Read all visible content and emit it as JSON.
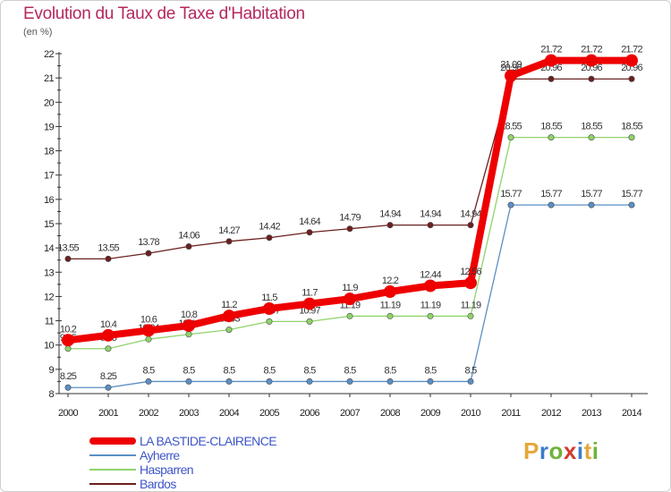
{
  "header": {
    "title": "Evolution du Taux de Taxe d'Habitation",
    "unit": "(en %)"
  },
  "logo": {
    "text": "Proxiti"
  },
  "chart_data": {
    "type": "line",
    "title": "Evolution du Taux de Taxe d'Habitation",
    "ylabel": "(en %)",
    "xlabel": "",
    "x": [
      2000,
      2001,
      2002,
      2003,
      2004,
      2005,
      2006,
      2007,
      2008,
      2009,
      2010,
      2011,
      2012,
      2013,
      2014
    ],
    "ylim": [
      8,
      22
    ],
    "yticks": [
      8,
      9,
      10,
      11,
      12,
      13,
      14,
      15,
      16,
      17,
      18,
      19,
      20,
      21,
      22
    ],
    "grid": false,
    "legend_position": "bottom-left",
    "series": [
      {
        "name": "Bardos",
        "color": "#6b1f1f",
        "values": [
          13.55,
          13.55,
          13.78,
          14.06,
          14.27,
          14.42,
          14.64,
          14.79,
          14.94,
          14.94,
          14.94,
          20.96,
          20.96,
          20.96,
          20.96
        ],
        "labels": [
          "13.55",
          "13.55",
          "13.78",
          "14.06",
          "14.27",
          "14.42",
          "14.64",
          "14.79",
          "14.94",
          "14.94",
          "14.94",
          "20.96",
          "20.96",
          "20.96",
          "20.96"
        ],
        "label_color": "#333333"
      },
      {
        "name": "Hasparren",
        "color": "#8fd36a",
        "values": [
          9.85,
          9.85,
          10.24,
          10.44,
          10.63,
          10.97,
          10.97,
          11.19,
          11.19,
          11.19,
          11.19,
          18.55,
          18.55,
          18.55,
          18.55
        ],
        "labels": [
          "9.85",
          "9.85",
          "10.24",
          "10.44",
          "10.63",
          "10.97",
          "10.97",
          "11.19",
          "11.19",
          "11.19",
          "11.19",
          "18.55",
          "18.55",
          "18.55",
          "18.55"
        ],
        "label_color": "#333333"
      },
      {
        "name": "Ayherre",
        "color": "#5b8fc4",
        "values": [
          8.25,
          8.25,
          8.5,
          8.5,
          8.5,
          8.5,
          8.5,
          8.5,
          8.5,
          8.5,
          8.5,
          15.77,
          15.77,
          15.77,
          15.77
        ],
        "labels": [
          "8.25",
          "8.25",
          "8.5",
          "8.5",
          "8.5",
          "8.5",
          "8.5",
          "8.5",
          "8.5",
          "8.5",
          "8.5",
          "15.77",
          "15.77",
          "15.77",
          "15.77"
        ],
        "label_color": "#333333"
      },
      {
        "name": "LA BASTIDE-CLAIRENCE",
        "color": "#ee0000",
        "values": [
          10.2,
          10.4,
          10.6,
          10.8,
          11.2,
          11.5,
          11.7,
          11.9,
          12.2,
          12.44,
          12.56,
          21.09,
          21.72,
          21.72,
          21.72
        ],
        "labels": [
          "10.2",
          "10.4",
          "10.6",
          "10.8",
          "11.2",
          "11.5",
          "11.7",
          "11.9",
          "12.2",
          "12.44",
          "12.56",
          "21.09",
          "21.72",
          "21.72",
          "21.72"
        ],
        "label_color": "#333333"
      }
    ],
    "legend_order": [
      "LA BASTIDE-CLAIRENCE",
      "Ayherre",
      "Hasparren",
      "Bardos"
    ]
  }
}
